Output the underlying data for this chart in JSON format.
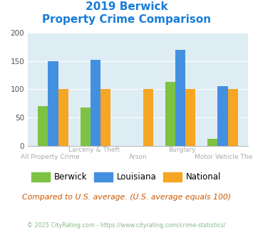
{
  "title_line1": "2019 Berwick",
  "title_line2": "Property Crime Comparison",
  "categories": [
    "All Property Crime",
    "Larceny & Theft",
    "Arson",
    "Burglary",
    "Motor Vehicle Theft"
  ],
  "top_labels": [
    "",
    "Larceny & Theft",
    "",
    "Burglary",
    ""
  ],
  "bottom_labels": [
    "All Property Crime",
    "",
    "Arson",
    "",
    "Motor Vehicle Theft"
  ],
  "berwick": [
    70,
    68,
    0,
    113,
    12
  ],
  "louisiana": [
    150,
    152,
    0,
    170,
    105
  ],
  "national": [
    100,
    100,
    100,
    100,
    100
  ],
  "berwick_color": "#7dc242",
  "louisiana_color": "#4490e0",
  "national_color": "#f5a623",
  "bg_color": "#deedf4",
  "title_color": "#1a7cd9",
  "xlabel_color": "#aaaaaa",
  "footnote_color": "#cc5500",
  "copyright_color": "#88bb88",
  "ylim": [
    0,
    200
  ],
  "yticks": [
    0,
    50,
    100,
    150,
    200
  ],
  "footnote": "Compared to U.S. average. (U.S. average equals 100)",
  "copyright": "© 2025 CityRating.com - https://www.cityrating.com/crime-statistics/"
}
